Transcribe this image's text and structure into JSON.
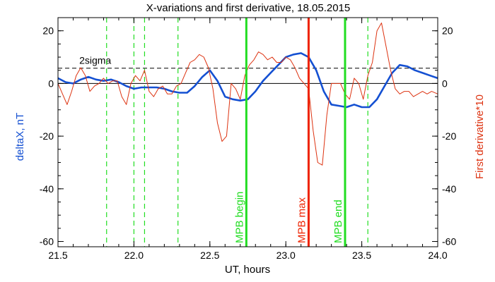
{
  "chart_data": {
    "type": "line",
    "title": "X-variations and first derivative, 18.05.2015",
    "xlabel": "UT, hours",
    "ylabel_left": "deltaX, nT",
    "ylabel_right": "First derivative*10",
    "xlim": [
      21.5,
      24.0
    ],
    "ylim": [
      -62,
      25
    ],
    "x_ticks": [
      21.5,
      22.0,
      22.5,
      23.0,
      23.5,
      24.0
    ],
    "x_tick_labels": [
      "21.5",
      "22.0",
      "22.5",
      "23.0",
      "23.5",
      "24.0"
    ],
    "y_ticks": [
      20,
      0,
      -20,
      -40,
      -60
    ],
    "y_tick_labels": [
      "20",
      "0",
      "-20",
      "-40",
      "-60"
    ],
    "threshold": {
      "label": "2sigma",
      "y": 5.8
    },
    "zero_line": 0,
    "dashed_markers": [
      21.82,
      22.0,
      22.07,
      22.29,
      23.54
    ],
    "events": [
      {
        "label": "MPB begin",
        "x": 22.74,
        "color": "#22dd22"
      },
      {
        "label": "MPB max",
        "x": 23.15,
        "color": "#ee2200"
      },
      {
        "label": "MPB end",
        "x": 23.39,
        "color": "#22dd22"
      }
    ],
    "series": [
      {
        "name": "deltaX",
        "color": "#1450d2",
        "x": [
          21.5,
          21.55,
          21.6,
          21.65,
          21.7,
          21.75,
          21.8,
          21.85,
          21.9,
          21.95,
          22.0,
          22.05,
          22.1,
          22.15,
          22.2,
          22.25,
          22.3,
          22.35,
          22.4,
          22.45,
          22.5,
          22.55,
          22.6,
          22.65,
          22.7,
          22.75,
          22.8,
          22.85,
          22.9,
          22.95,
          23.0,
          23.05,
          23.1,
          23.15,
          23.2,
          23.25,
          23.3,
          23.35,
          23.4,
          23.45,
          23.5,
          23.55,
          23.6,
          23.65,
          23.7,
          23.75,
          23.8,
          23.85,
          23.9,
          23.95,
          24.0
        ],
        "values": [
          2,
          0.5,
          0,
          1.5,
          2.5,
          1.5,
          1,
          1.5,
          0.5,
          -1,
          -2,
          -1.5,
          -1.5,
          -1.5,
          -2,
          -3,
          -3.5,
          -3.5,
          -1,
          2.5,
          5,
          1,
          -5,
          -6,
          -6.5,
          -6,
          -3,
          1,
          4,
          7,
          10,
          11,
          11.5,
          10,
          5,
          -3,
          -8,
          -8.5,
          -9,
          -8,
          -9,
          -9,
          -6,
          -1,
          4,
          7,
          6.5,
          5,
          4,
          3,
          2
        ]
      },
      {
        "name": "first-derivative",
        "color": "#dd3311",
        "x": [
          21.5,
          21.53,
          21.56,
          21.59,
          21.62,
          21.65,
          21.68,
          21.71,
          21.74,
          21.77,
          21.8,
          21.83,
          21.86,
          21.89,
          21.92,
          21.95,
          21.98,
          22.01,
          22.04,
          22.07,
          22.1,
          22.13,
          22.16,
          22.19,
          22.22,
          22.25,
          22.28,
          22.31,
          22.34,
          22.37,
          22.4,
          22.43,
          22.46,
          22.49,
          22.52,
          22.55,
          22.58,
          22.61,
          22.64,
          22.67,
          22.7,
          22.73,
          22.76,
          22.79,
          22.82,
          22.85,
          22.88,
          22.91,
          22.94,
          22.97,
          23.0,
          23.03,
          23.06,
          23.09,
          23.12,
          23.15,
          23.18,
          23.21,
          23.24,
          23.27,
          23.3,
          23.33,
          23.36,
          23.39,
          23.42,
          23.45,
          23.48,
          23.51,
          23.54,
          23.57,
          23.6,
          23.63,
          23.66,
          23.69,
          23.72,
          23.75,
          23.78,
          23.81,
          23.84,
          23.87,
          23.9,
          23.93,
          23.96,
          24.0
        ],
        "values": [
          0,
          -4,
          -8,
          -3,
          3,
          6,
          3,
          -3,
          -1,
          0,
          2,
          0,
          1,
          1,
          -5,
          -8,
          0,
          3,
          1,
          5,
          -3,
          -5,
          -2,
          -1,
          -4,
          -4,
          -1,
          0,
          4,
          8,
          9,
          11,
          10,
          6,
          -2,
          -15,
          -22,
          -20,
          0,
          -2,
          -6,
          3,
          7,
          9,
          12,
          11,
          9,
          10,
          8,
          8,
          10,
          9,
          6,
          2,
          0,
          -2,
          -18,
          -30,
          -31,
          -12,
          0,
          0,
          0,
          -4,
          -6,
          2,
          0,
          -6,
          3,
          8,
          20,
          23,
          14,
          5,
          -2,
          -4,
          -3,
          -3,
          -5,
          -4,
          -3,
          -4,
          -3,
          -4
        ]
      }
    ]
  }
}
